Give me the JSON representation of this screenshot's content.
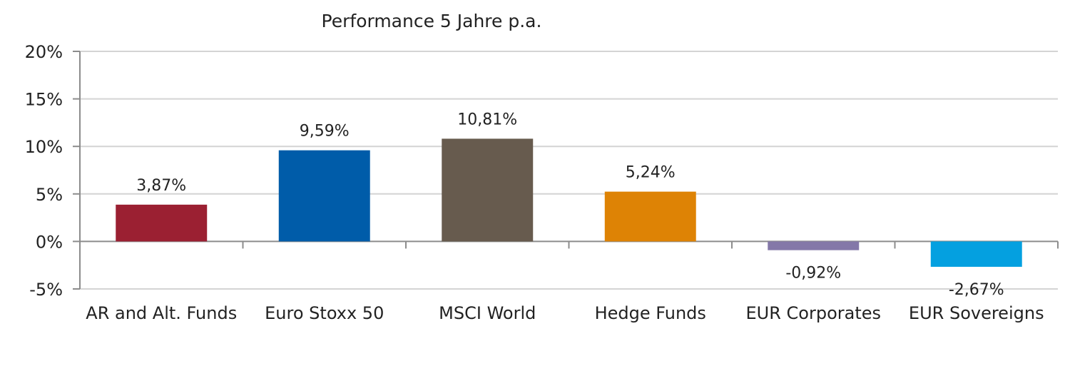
{
  "chart_data": {
    "type": "bar",
    "title": "Performance 5 Jahre p.a.",
    "xlabel": "",
    "ylabel": "",
    "categories": [
      "AR and Alt. Funds",
      "Euro Stoxx 50",
      "MSCI World",
      "Hedge Funds",
      "EUR Corporates",
      "EUR Sovereigns"
    ],
    "values": [
      3.87,
      9.59,
      10.81,
      5.24,
      -0.92,
      -2.67
    ],
    "data_labels": [
      "3,87%",
      "9,59%",
      "10,81%",
      "5,24%",
      "-0,92%",
      "-2,67%"
    ],
    "bar_colors": [
      "#9b2032",
      "#005ca9",
      "#675b4e",
      "#de8305",
      "#8478a8",
      "#04a0e0"
    ],
    "ylim": [
      -5,
      20
    ],
    "yticks": [
      20,
      15,
      10,
      5,
      0,
      -5
    ],
    "ytick_labels": [
      "20%",
      "15%",
      "10%",
      "5%",
      "0%",
      "-5%"
    ],
    "grid": true,
    "legend": "none"
  }
}
